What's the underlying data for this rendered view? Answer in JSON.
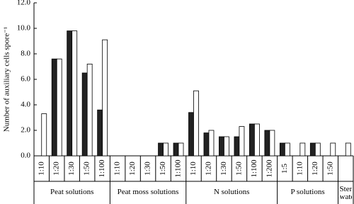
{
  "chart_data": {
    "type": "bar",
    "y_label": "Number of auxiliary cells spore⁻¹",
    "groups": [
      {
        "label": "Peat solutions",
        "categories": [
          "1:10",
          "1:20",
          "1:30",
          "1:50",
          "1:100"
        ]
      },
      {
        "label": "Peat moss solutions",
        "categories": [
          "1:10",
          "1:20",
          "1:30",
          "1:50",
          "1:100"
        ]
      },
      {
        "label": "N solutions",
        "categories": [
          "1:10",
          "1:20",
          "1:30",
          "1:50",
          "1:100",
          "1:200"
        ]
      },
      {
        "label": "P solutions",
        "categories": [
          "1:5",
          "1:10",
          "1:20",
          "1:50"
        ]
      },
      {
        "label": "Sterile water",
        "categories": [
          null
        ]
      }
    ],
    "series": [
      {
        "color": "#222222",
        "values": [
          0,
          7.6,
          9.8,
          6.5,
          3.6,
          0,
          0,
          0,
          1.0,
          1.0,
          3.4,
          1.8,
          1.5,
          1.5,
          2.5,
          2.0,
          1.0,
          0,
          1.0,
          0,
          0
        ]
      },
      {
        "color": "#ffffff",
        "values": [
          3.3,
          7.6,
          9.8,
          7.2,
          9.1,
          0,
          0,
          0,
          1.0,
          1.0,
          5.1,
          2.0,
          1.5,
          2.3,
          2.5,
          2.0,
          1.0,
          1.0,
          1.0,
          1.0,
          1.0
        ]
      }
    ],
    "ylim": [
      0,
      12
    ],
    "yticks": [
      {
        "value": 0,
        "label": "0.0"
      },
      {
        "value": 2,
        "label": "2.0"
      },
      {
        "value": 4,
        "label": "4.0"
      },
      {
        "value": 6,
        "label": "6.0"
      },
      {
        "value": 8,
        "label": "8.0"
      },
      {
        "value": 10,
        "label": "10.0"
      },
      {
        "value": 12,
        "label": "12.0"
      }
    ]
  }
}
